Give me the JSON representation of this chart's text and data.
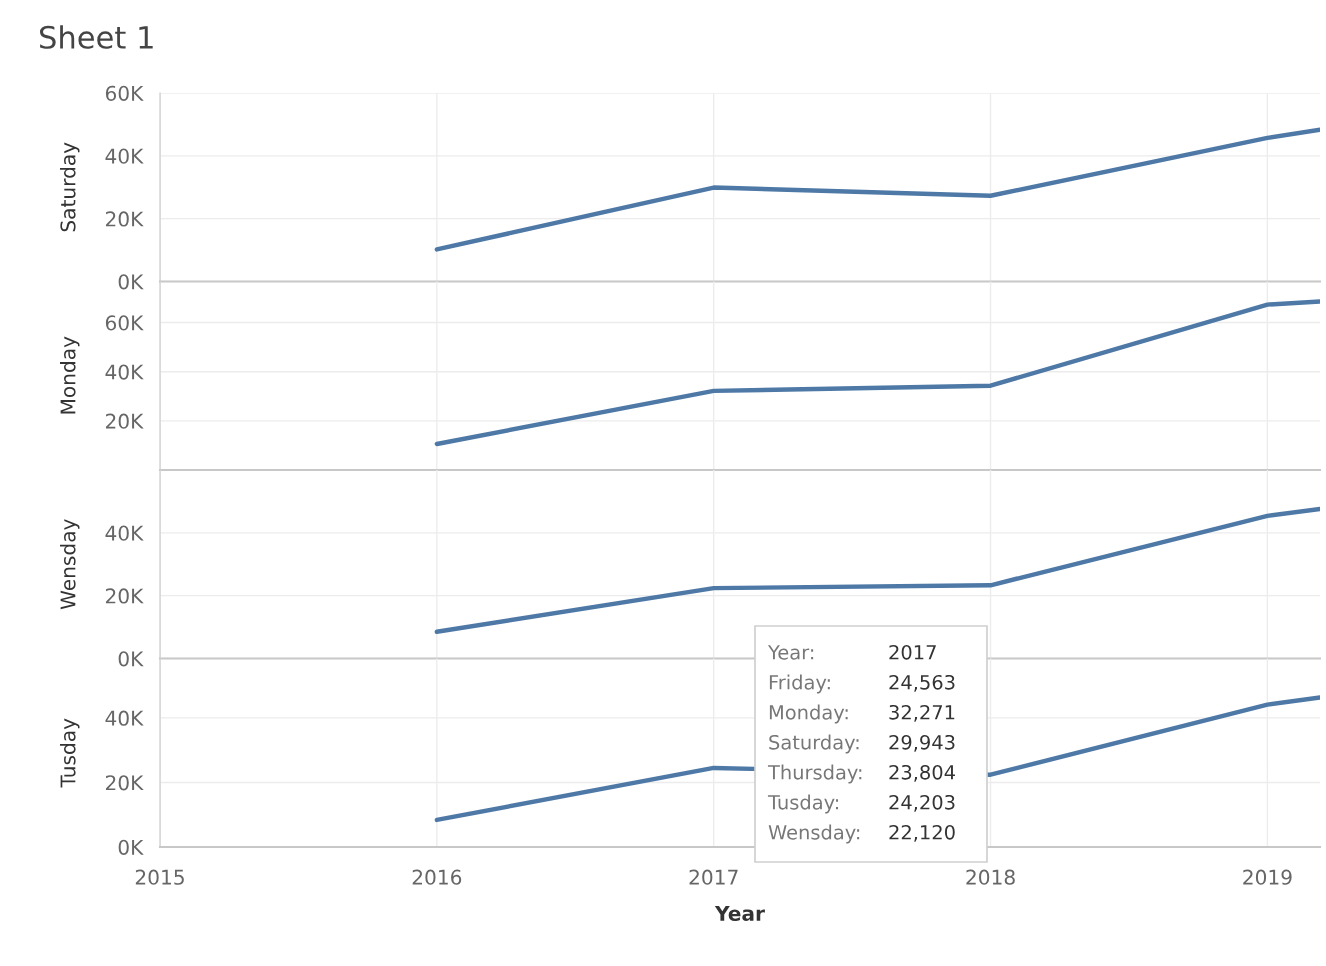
{
  "chart_data": [
    {
      "type": "line",
      "title": "Sheet 1",
      "ylabel": "Saturday",
      "x": [
        2016,
        2017,
        2018,
        2019,
        2019.19
      ],
      "series": [
        {
          "color": "#4e79a7",
          "values": [
            10200,
            29900,
            27300,
            45700,
            48300
          ]
        }
      ],
      "xlim": [
        2015,
        2019.19
      ],
      "xticks": [
        2015,
        2016,
        2017,
        2018,
        2019
      ],
      "ylim": [
        0,
        60000
      ],
      "yticks": [
        {
          "value": 0,
          "label": "0K"
        },
        {
          "value": 20000,
          "label": "20K"
        },
        {
          "value": 40000,
          "label": "40K"
        },
        {
          "value": 60000,
          "label": "60K"
        }
      ],
      "grid": true,
      "tick_labels": "y"
    },
    {
      "type": "line",
      "ylabel": "Monday",
      "x": [
        2016,
        2017,
        2018,
        2019,
        2019.19
      ],
      "series": [
        {
          "color": "#4e79a7",
          "values": [
            10600,
            32200,
            34300,
            67300,
            68600
          ]
        }
      ],
      "xlim": [
        2015,
        2019.19
      ],
      "xticks": [
        2015,
        2016,
        2017,
        2018,
        2019
      ],
      "ylim": [
        0,
        76700
      ],
      "yticks": [
        {
          "value": 20000,
          "label": "20K"
        },
        {
          "value": 40000,
          "label": "40K"
        },
        {
          "value": 60000,
          "label": "60K"
        }
      ],
      "grid": true,
      "tick_labels": "y"
    },
    {
      "type": "line",
      "ylabel": "Wensday",
      "x": [
        2016,
        2017,
        2018,
        2019,
        2019.19
      ],
      "series": [
        {
          "color": "#4e79a7",
          "values": [
            8500,
            22400,
            23300,
            45400,
            47600
          ]
        }
      ],
      "xlim": [
        2015,
        2019.19
      ],
      "xticks": [
        2015,
        2016,
        2017,
        2018,
        2019
      ],
      "ylim": [
        0,
        60000
      ],
      "yticks": [
        {
          "value": 0,
          "label": "0K"
        },
        {
          "value": 20000,
          "label": "20K"
        },
        {
          "value": 40000,
          "label": "40K"
        }
      ],
      "grid": true,
      "tick_labels": "y"
    },
    {
      "type": "line",
      "ylabel": "Tusday",
      "xlabel": "Year",
      "x": [
        2016,
        2017,
        2018,
        2019,
        2019.19
      ],
      "series": [
        {
          "color": "#4e79a7",
          "values": [
            8400,
            24500,
            22400,
            44100,
            46300
          ]
        }
      ],
      "xlim": [
        2015,
        2019.19
      ],
      "xticks": [
        2015,
        2016,
        2017,
        2018,
        2019
      ],
      "ylim": [
        0,
        58400
      ],
      "yticks": [
        {
          "value": 0,
          "label": "0K"
        },
        {
          "value": 20000,
          "label": "20K"
        },
        {
          "value": 40000,
          "label": "40K"
        }
      ],
      "grid": true,
      "annotations": [
        "Year:",
        "2017",
        "Friday:",
        "24,563",
        "Monday:",
        "32,271",
        "Saturday:",
        "29,943",
        "Thursday:",
        "23,804",
        "Tusday:",
        "24,203",
        "Wensday:",
        "22,120"
      ]
    }
  ]
}
